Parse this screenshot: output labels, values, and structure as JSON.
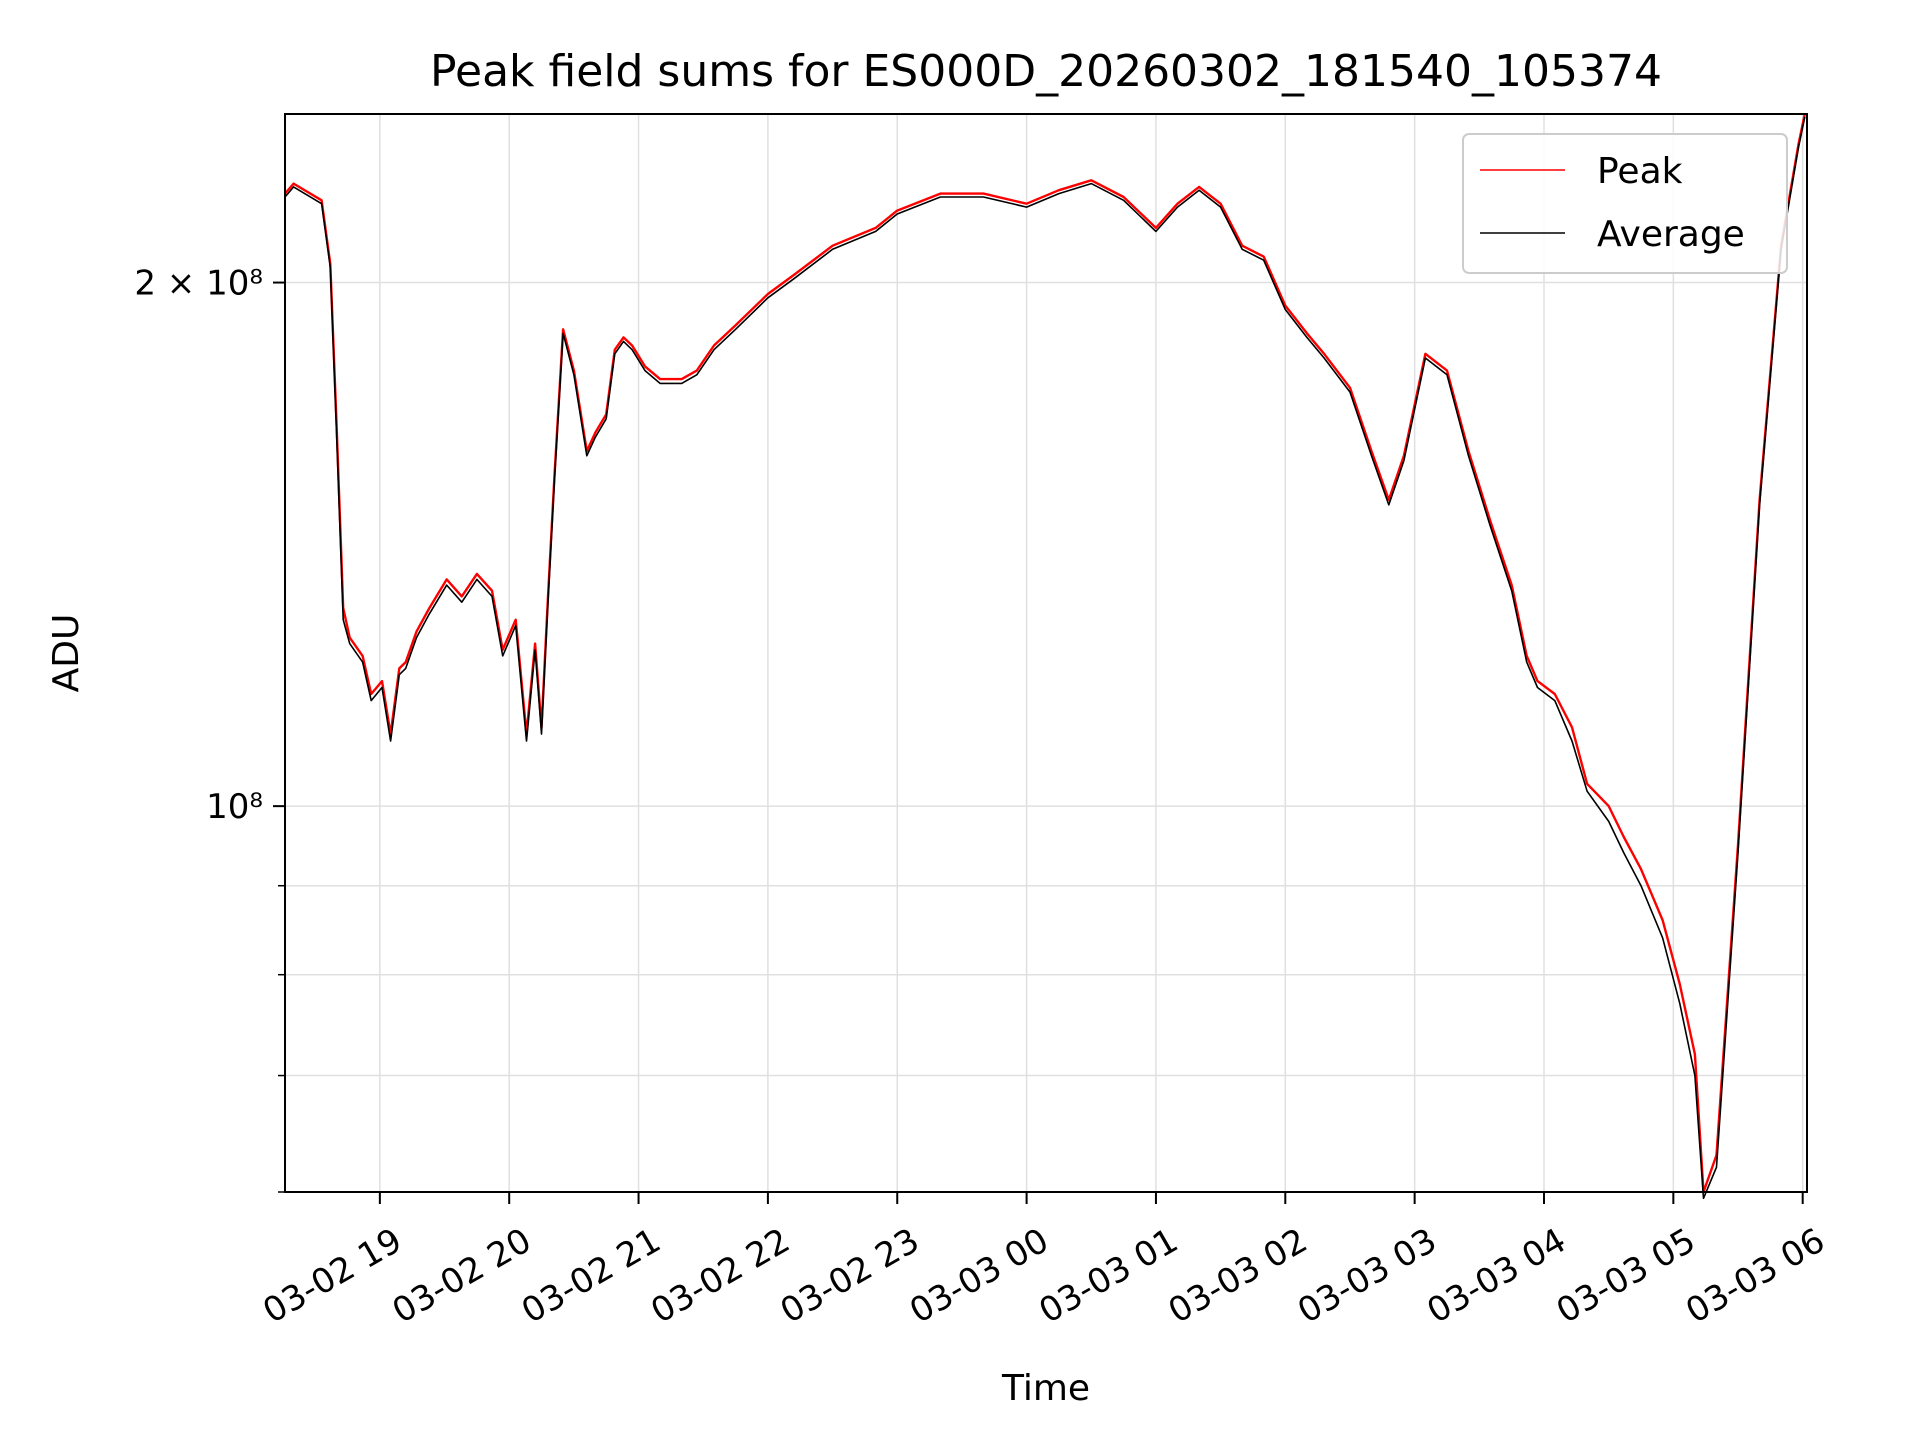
{
  "chart_data": {
    "type": "line",
    "title": "Peak field sums for ES000D_20260302_181540_105374",
    "xlabel": "Time",
    "ylabel": "ADU",
    "yscale": "log",
    "ylim": [
      60000000,
      250000000
    ],
    "xlim": [
      "2026-03-02 18:16",
      "2026-03-03 06:02"
    ],
    "grid": true,
    "legend_position": "top-right",
    "x_ticks": [
      "03-02 19",
      "03-02 20",
      "03-02 21",
      "03-02 22",
      "03-02 23",
      "03-03 00",
      "03-03 01",
      "03-03 02",
      "03-03 03",
      "03-03 04",
      "03-03 05",
      "03-03 06"
    ],
    "y_ticks": [
      {
        "value": 200000000,
        "label": "2 × 10⁸"
      },
      {
        "value": 100000000,
        "label": "10⁸"
      }
    ],
    "x": [
      "2026-03-02 18:16",
      "2026-03-02 18:20",
      "2026-03-02 18:33",
      "2026-03-02 18:37",
      "2026-03-02 18:40",
      "2026-03-02 18:43",
      "2026-03-02 18:46",
      "2026-03-02 18:52",
      "2026-03-02 18:56",
      "2026-03-02 19:01",
      "2026-03-02 19:05",
      "2026-03-02 19:09",
      "2026-03-02 19:12",
      "2026-03-02 19:17",
      "2026-03-02 19:23",
      "2026-03-02 19:31",
      "2026-03-02 19:38",
      "2026-03-02 19:45",
      "2026-03-02 19:52",
      "2026-03-02 19:57",
      "2026-03-02 20:03",
      "2026-03-02 20:08",
      "2026-03-02 20:12",
      "2026-03-02 20:15",
      "2026-03-02 20:18",
      "2026-03-02 20:21",
      "2026-03-02 20:25",
      "2026-03-02 20:30",
      "2026-03-02 20:36",
      "2026-03-02 20:40",
      "2026-03-02 20:45",
      "2026-03-02 20:49",
      "2026-03-02 20:53",
      "2026-03-02 20:57",
      "2026-03-02 21:03",
      "2026-03-02 21:10",
      "2026-03-02 21:20",
      "2026-03-02 21:27",
      "2026-03-02 21:35",
      "2026-03-02 21:45",
      "2026-03-02 22:00",
      "2026-03-02 22:12",
      "2026-03-02 22:30",
      "2026-03-02 22:50",
      "2026-03-02 23:00",
      "2026-03-02 23:20",
      "2026-03-02 23:40",
      "2026-03-03 00:00",
      "2026-03-03 00:15",
      "2026-03-03 00:30",
      "2026-03-03 00:45",
      "2026-03-03 01:00",
      "2026-03-03 01:10",
      "2026-03-03 01:20",
      "2026-03-03 01:30",
      "2026-03-03 01:40",
      "2026-03-03 01:50",
      "2026-03-03 02:00",
      "2026-03-03 02:10",
      "2026-03-03 02:18",
      "2026-03-03 02:30",
      "2026-03-03 02:40",
      "2026-03-03 02:48",
      "2026-03-03 02:55",
      "2026-03-03 03:05",
      "2026-03-03 03:15",
      "2026-03-03 03:25",
      "2026-03-03 03:35",
      "2026-03-03 03:45",
      "2026-03-03 03:52",
      "2026-03-03 03:57",
      "2026-03-03 04:05",
      "2026-03-03 04:13",
      "2026-03-03 04:20",
      "2026-03-03 04:30",
      "2026-03-03 04:37",
      "2026-03-03 04:45",
      "2026-03-03 04:55",
      "2026-03-03 05:03",
      "2026-03-03 05:10",
      "2026-03-03 05:14",
      "2026-03-03 05:20",
      "2026-03-03 05:30",
      "2026-03-03 05:40",
      "2026-03-03 05:50",
      "2026-03-03 05:58",
      "2026-03-03 06:01"
    ],
    "series": [
      {
        "name": "Peak",
        "color": "#ff0000",
        "values": [
          225000000,
          228000000,
          223000000,
          205000000,
          165000000,
          130000000,
          125000000,
          122000000,
          116000000,
          118000000,
          110000000,
          120000000,
          121000000,
          126000000,
          130000000,
          135000000,
          132000000,
          136000000,
          133000000,
          123000000,
          128000000,
          110000000,
          124000000,
          111000000,
          132000000,
          155000000,
          188000000,
          178000000,
          160000000,
          164000000,
          168000000,
          183000000,
          186000000,
          184000000,
          179000000,
          176000000,
          176000000,
          178000000,
          184000000,
          189000000,
          197000000,
          202000000,
          210000000,
          215000000,
          220000000,
          225000000,
          225000000,
          222000000,
          226000000,
          229000000,
          224000000,
          215000000,
          222000000,
          227000000,
          222000000,
          210000000,
          207000000,
          194000000,
          187000000,
          182000000,
          174000000,
          160000000,
          150000000,
          159000000,
          182000000,
          178000000,
          160000000,
          146000000,
          134000000,
          122000000,
          118000000,
          116000000,
          111000000,
          103000000,
          100000000,
          96000000,
          92000000,
          86000000,
          79000000,
          72000000,
          60000000,
          63000000,
          95000000,
          150000000,
          210000000,
          240000000,
          250000000
        ]
      },
      {
        "name": "Average",
        "color": "#000000",
        "values": [
          224000000,
          227000000,
          222000000,
          204000000,
          163000000,
          128000000,
          124000000,
          121000000,
          115000000,
          117000000,
          109000000,
          119000000,
          120000000,
          125000000,
          129000000,
          134000000,
          131000000,
          135000000,
          132000000,
          122000000,
          127000000,
          109000000,
          123000000,
          110000000,
          131000000,
          154000000,
          187000000,
          177000000,
          159000000,
          163000000,
          167000000,
          182000000,
          185000000,
          183000000,
          178000000,
          175000000,
          175000000,
          177000000,
          183000000,
          188000000,
          196000000,
          201000000,
          209000000,
          214000000,
          219000000,
          224000000,
          224000000,
          221000000,
          225000000,
          228000000,
          223000000,
          214000000,
          221000000,
          226000000,
          221000000,
          209000000,
          206000000,
          193000000,
          186000000,
          181000000,
          173000000,
          159000000,
          149000000,
          158000000,
          181000000,
          177000000,
          159000000,
          145000000,
          133000000,
          121000000,
          117000000,
          115000000,
          109000000,
          102000000,
          98000000,
          94000000,
          90000000,
          84000000,
          77000000,
          70000000,
          59500000,
          62000000,
          94000000,
          149000000,
          209000000,
          239000000,
          249000000
        ]
      }
    ]
  }
}
